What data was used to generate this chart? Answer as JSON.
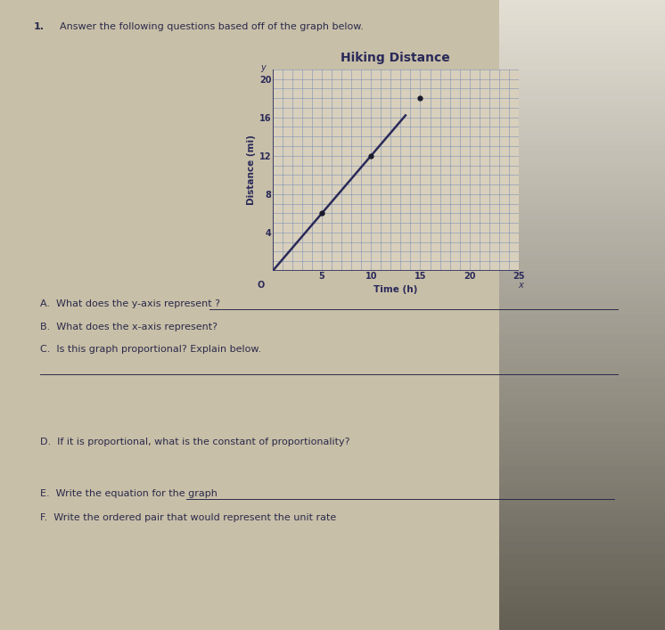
{
  "title": "Hiking Distance",
  "xlabel": "Time (h)",
  "ylabel": "Distance (mi)",
  "paper_color": "#c8bfa8",
  "graph_bg": "#d8d0bc",
  "grid_color": "#8090b8",
  "line_color": "#2a2a5a",
  "point_color": "#1a1a2a",
  "axis_color": "#2a2a5a",
  "text_color": "#2a2a4a",
  "x_ticks": [
    5,
    10,
    15,
    20,
    25
  ],
  "y_ticks": [
    4,
    8,
    12,
    16,
    20
  ],
  "xlim": [
    0,
    25
  ],
  "ylim": [
    0,
    21
  ],
  "points_x": [
    0,
    5,
    10,
    15
  ],
  "points_y": [
    0,
    6,
    12,
    18
  ],
  "title_fontsize": 10,
  "label_fontsize": 7.5,
  "tick_fontsize": 7,
  "question_number": "1.",
  "question_intro": "Answer the following questions based off of the graph below.",
  "questions": [
    "A.  What does the y-axis represent ?",
    "B.  What does the x-axis represent?",
    "C.  Is this graph proportional? Explain below.",
    "D.  If it is proportional, what is the constant of proportionality?",
    "E.  Write the equation for the graph",
    "F.  Write the ordered pair that would represent the unit rate"
  ]
}
